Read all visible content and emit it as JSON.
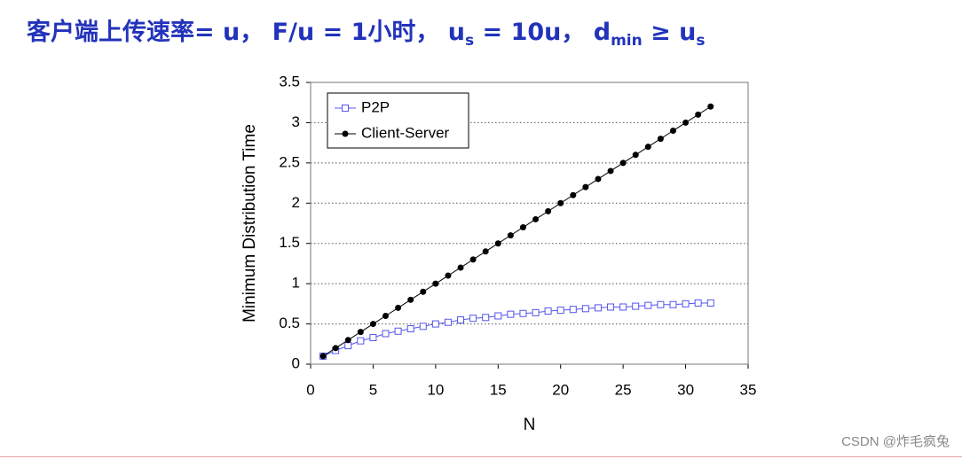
{
  "chart_data": {
    "type": "line",
    "title_parts": [
      "客户端上传速率= u， F/u = 1小时， u",
      "s",
      " = 10u， d",
      "min",
      " ≥ u",
      "s"
    ],
    "xlabel": "N",
    "ylabel": "Minimum Distribution Time",
    "x": [
      1,
      2,
      3,
      4,
      5,
      6,
      7,
      8,
      9,
      10,
      11,
      12,
      13,
      14,
      15,
      16,
      17,
      18,
      19,
      20,
      21,
      22,
      23,
      24,
      25,
      26,
      27,
      28,
      29,
      30,
      31,
      32
    ],
    "series": [
      {
        "name": "P2P",
        "color": "#5555ee",
        "marker": "square",
        "values": [
          0.1,
          0.17,
          0.23,
          0.29,
          0.33,
          0.38,
          0.41,
          0.44,
          0.47,
          0.5,
          0.52,
          0.55,
          0.57,
          0.58,
          0.6,
          0.62,
          0.63,
          0.64,
          0.66,
          0.67,
          0.68,
          0.69,
          0.7,
          0.71,
          0.71,
          0.72,
          0.73,
          0.74,
          0.74,
          0.75,
          0.76,
          0.76
        ]
      },
      {
        "name": "Client-Server",
        "color": "#000000",
        "marker": "circle",
        "values": [
          0.1,
          0.2,
          0.3,
          0.4,
          0.5,
          0.6,
          0.7,
          0.8,
          0.9,
          1.0,
          1.1,
          1.2,
          1.3,
          1.4,
          1.5,
          1.6,
          1.7,
          1.8,
          1.9,
          2.0,
          2.1,
          2.2,
          2.3,
          2.4,
          2.5,
          2.6,
          2.7,
          2.8,
          2.9,
          3.0,
          3.1,
          3.2
        ]
      }
    ],
    "xlim": [
      0,
      35
    ],
    "xticks": [
      0,
      5,
      10,
      15,
      20,
      25,
      30,
      35
    ],
    "ylim": [
      0,
      3.5
    ],
    "yticks": [
      0,
      0.5,
      1,
      1.5,
      2,
      2.5,
      3,
      3.5
    ],
    "grid": true,
    "legend": "upper left"
  },
  "watermark": "CSDN @炸毛疯兔"
}
